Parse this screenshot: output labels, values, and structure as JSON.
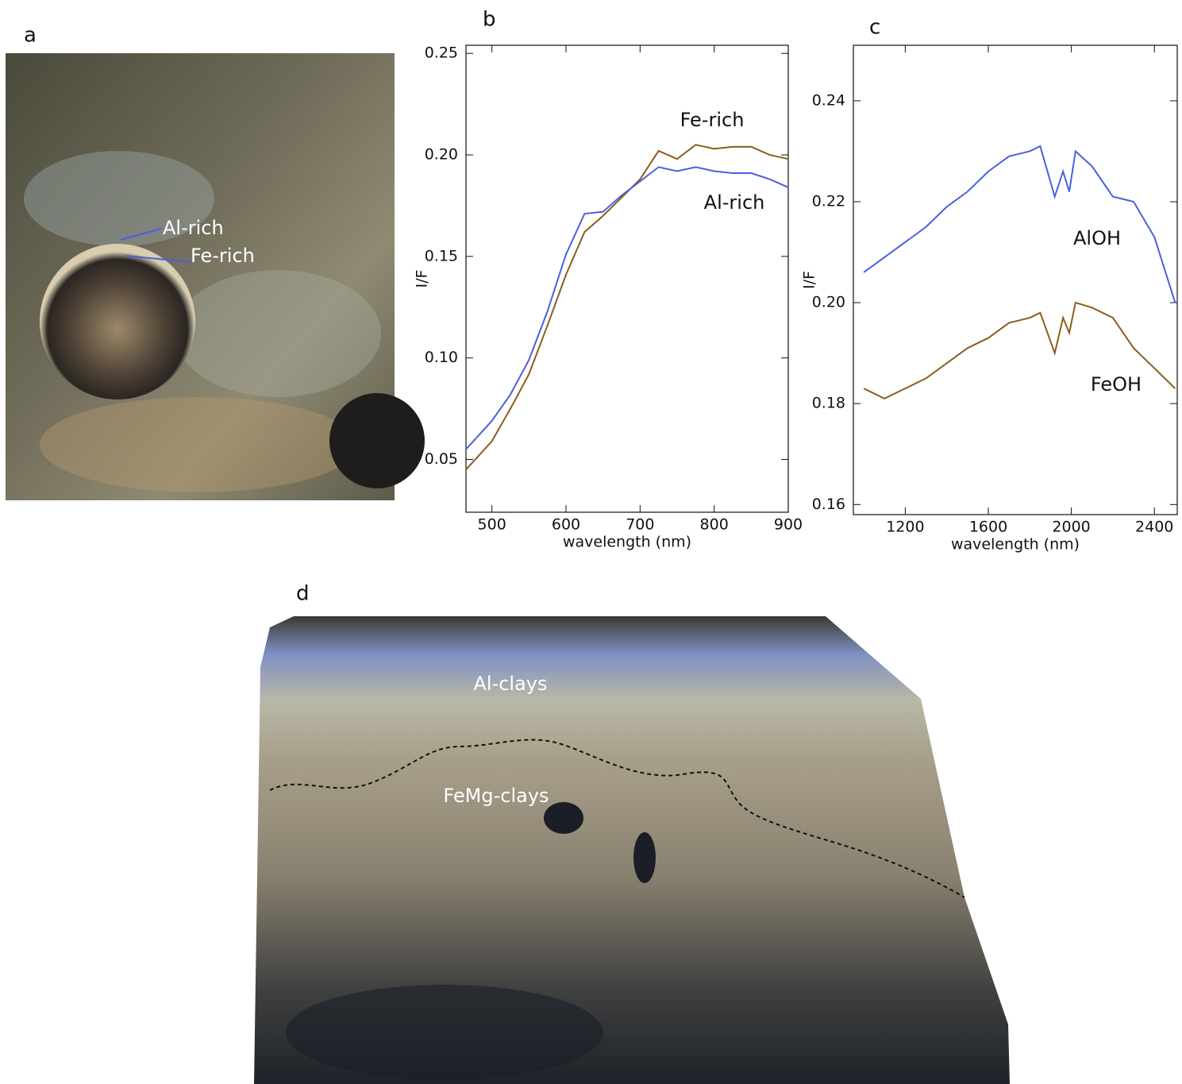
{
  "panels": {
    "a": {
      "label": "a",
      "annotations": [
        "Al-rich",
        "Fe-rich"
      ]
    },
    "d": {
      "label": "d",
      "annotations": [
        "Al-clays",
        "FeMg-clays"
      ]
    }
  },
  "chart_data": [
    {
      "type": "line",
      "panel_label": "b",
      "xlabel": "wavelength (nm)",
      "ylabel": "I/F",
      "x": [
        465,
        500,
        525,
        550,
        575,
        600,
        625,
        650,
        675,
        700,
        725,
        750,
        775,
        800,
        825,
        850,
        875,
        900
      ],
      "series": [
        {
          "name": "Fe-rich",
          "color": "#8b5e1a",
          "values": [
            0.045,
            0.059,
            0.075,
            0.092,
            0.116,
            0.141,
            0.162,
            0.17,
            0.179,
            0.188,
            0.202,
            0.198,
            0.205,
            0.203,
            0.204,
            0.204,
            0.2,
            0.198
          ]
        },
        {
          "name": "Al-rich",
          "color": "#4a5fe0",
          "values": [
            0.055,
            0.069,
            0.082,
            0.099,
            0.123,
            0.151,
            0.171,
            0.172,
            0.18,
            0.187,
            0.194,
            0.192,
            0.194,
            0.192,
            0.191,
            0.191,
            0.188,
            0.184
          ]
        }
      ],
      "xlim": [
        465,
        900
      ],
      "xticks": [
        500,
        600,
        700,
        800,
        900
      ],
      "ylim": [
        0.024,
        0.254
      ],
      "yticks": [
        0.05,
        {
          "value": 0.1,
          "label": "0.10"
        },
        0.15,
        {
          "value": 0.2,
          "label": "0.20"
        },
        0.25
      ]
    },
    {
      "type": "line",
      "panel_label": "c",
      "xlabel": "wavelength (nm)",
      "ylabel": "I/F",
      "x": [
        1000,
        1100,
        1200,
        1300,
        1400,
        1500,
        1600,
        1700,
        1800,
        1850,
        1920,
        1960,
        1990,
        2020,
        2100,
        2200,
        2300,
        2400,
        2500
      ],
      "series": [
        {
          "name": "AlOH",
          "color": "#4a5fe0",
          "values": [
            0.206,
            0.209,
            0.212,
            0.215,
            0.219,
            0.222,
            0.226,
            0.229,
            0.23,
            0.231,
            0.221,
            0.226,
            0.222,
            0.23,
            0.227,
            0.221,
            0.22,
            0.213,
            0.2
          ]
        },
        {
          "name": "FeOH",
          "color": "#8b5e1a",
          "values": [
            0.183,
            0.181,
            0.183,
            0.185,
            0.188,
            0.191,
            0.193,
            0.196,
            0.197,
            0.198,
            0.19,
            0.197,
            0.194,
            0.2,
            0.199,
            0.197,
            0.191,
            0.187,
            0.183
          ]
        }
      ],
      "xlim": [
        950,
        2510
      ],
      "xticks": [
        1200,
        1600,
        2000,
        2400
      ],
      "ylim": [
        0.158,
        0.251
      ],
      "yticks": [
        0.16,
        0.18,
        {
          "value": 0.2,
          "label": "0.20"
        },
        0.22,
        0.24
      ]
    }
  ]
}
